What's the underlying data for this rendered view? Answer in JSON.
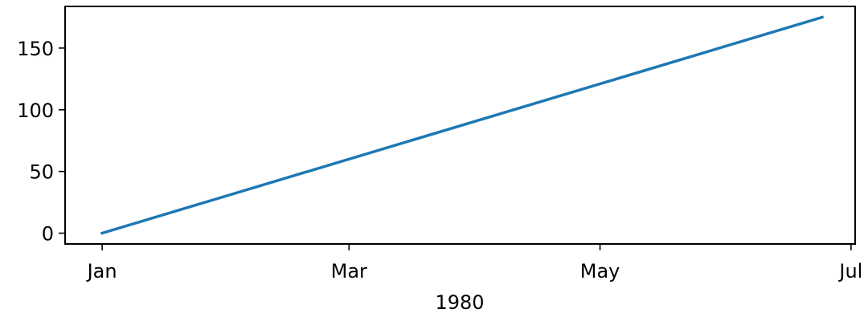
{
  "chart_data": {
    "type": "line",
    "title": "",
    "xlabel": "1980",
    "ylabel": "",
    "x": [
      "1980-01-01",
      "1980-06-24"
    ],
    "series": [
      {
        "values": [
          0,
          175
        ],
        "color": "#1f77b4"
      }
    ],
    "xlim": [
      "1979-12-23",
      "1980-07-02"
    ],
    "ylim": [
      -8.75,
      183.75
    ],
    "x_ticks": [
      {
        "date": "1980-01-01",
        "label": "Jan"
      },
      {
        "date": "1980-03-01",
        "label": "Mar"
      },
      {
        "date": "1980-05-01",
        "label": "May"
      },
      {
        "date": "1980-07-01",
        "label": "Jul"
      }
    ],
    "y_ticks": [
      {
        "value": 0,
        "label": "0"
      },
      {
        "value": 50,
        "label": "50"
      },
      {
        "value": 100,
        "label": "100"
      },
      {
        "value": 150,
        "label": "150"
      }
    ],
    "grid": false,
    "legend": "none"
  }
}
